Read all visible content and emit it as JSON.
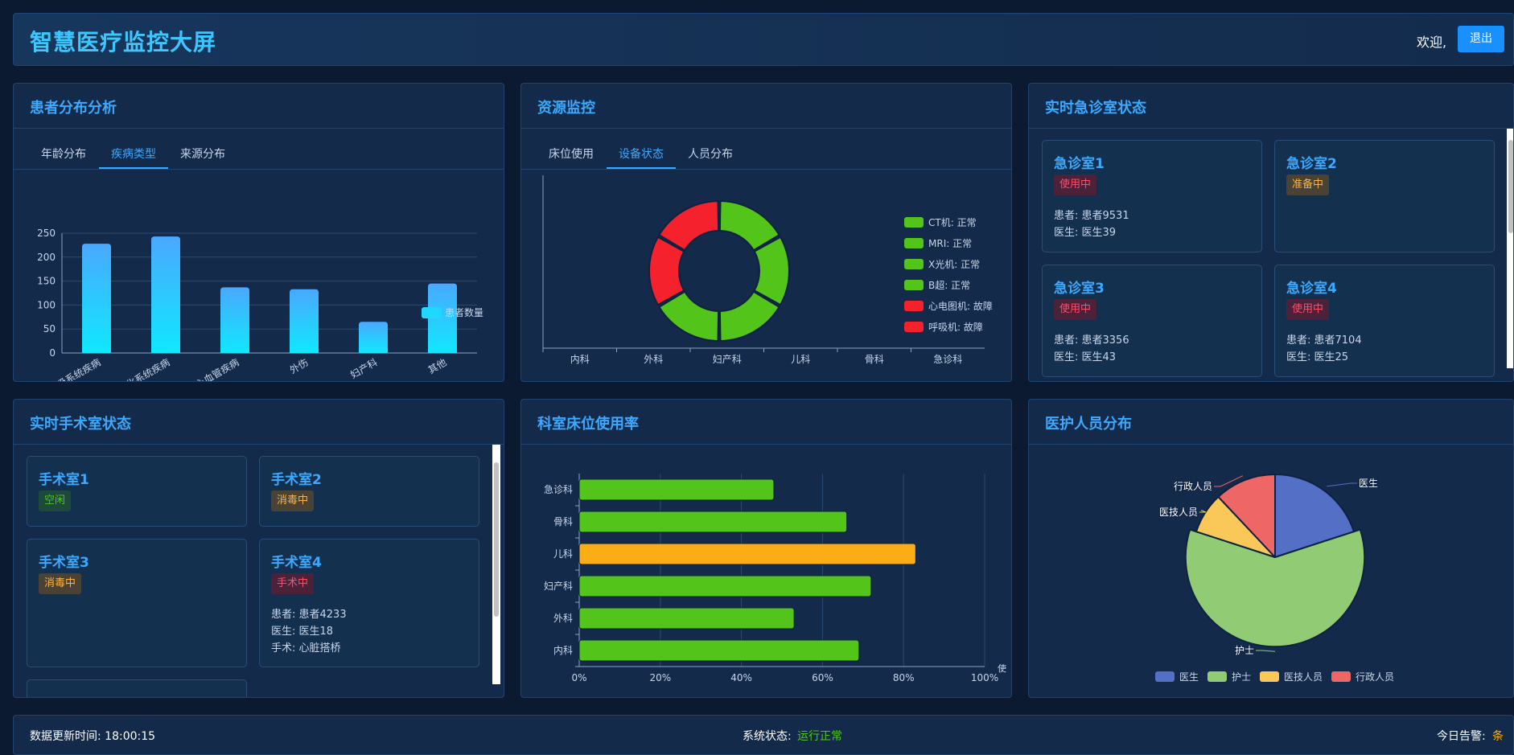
{
  "header": {
    "title": "智慧医疗监控大屏",
    "welcome": "欢迎,",
    "logout_label": "退出"
  },
  "patient_panel": {
    "title": "患者分布分析",
    "tabs": [
      "年龄分布",
      "疾病类型",
      "来源分布"
    ],
    "active_tab": 1
  },
  "resource_panel": {
    "title": "资源监控",
    "tabs": [
      "床位使用",
      "设备状态",
      "人员分布"
    ],
    "active_tab": 1
  },
  "er_panel": {
    "title": "实时急诊室状态",
    "rooms": [
      {
        "name": "急诊室1",
        "status": "使用中",
        "patient": "患者: 患者9531",
        "doctor": "医生: 医生39"
      },
      {
        "name": "急诊室2",
        "status": "准备中"
      },
      {
        "name": "急诊室3",
        "status": "使用中",
        "patient": "患者: 患者3356",
        "doctor": "医生: 医生43"
      },
      {
        "name": "急诊室4",
        "status": "使用中",
        "patient": "患者: 患者7104",
        "doctor": "医生: 医生25"
      }
    ]
  },
  "or_panel": {
    "title": "实时手术室状态",
    "rooms": [
      {
        "name": "手术室1",
        "status": "空闲"
      },
      {
        "name": "手术室2",
        "status": "消毒中"
      },
      {
        "name": "手术室3",
        "status": "消毒中"
      },
      {
        "name": "手术室4",
        "status": "手术中",
        "patient": "患者: 患者4233",
        "doctor": "医生: 医生18",
        "surgery": "手术: 心脏搭桥"
      }
    ]
  },
  "bed_panel": {
    "title": "科室床位使用率"
  },
  "staff_panel": {
    "title": "医护人员分布"
  },
  "footer": {
    "update_label": "数据更新时间: 18:00:15",
    "status_label": "系统状态:",
    "status_value": "运行正常",
    "alert_label": "今日告警:",
    "alert_value": "条"
  },
  "colors": {
    "accent": "#3ca9ff",
    "green": "#52c41a",
    "red": "#f5222d",
    "orange": "#faad14"
  },
  "chart_data": [
    {
      "type": "bar",
      "categories": [
        "呼吸系统疾病",
        "消化系统疾病",
        "心血管疾病",
        "外伤",
        "妇产科",
        "其他"
      ],
      "series": [
        {
          "name": "患者数量",
          "values": [
            228,
            243,
            137,
            133,
            65,
            145
          ]
        }
      ],
      "ylim": [
        0,
        250
      ],
      "yticks": [
        "0",
        "50",
        "100",
        "150",
        "200",
        "250"
      ],
      "legend": "right"
    },
    {
      "type": "pie",
      "variant": "donut",
      "x_categories": [
        "内科",
        "外科",
        "妇产科",
        "儿科",
        "骨科",
        "急诊科"
      ],
      "slices": [
        {
          "name": "CT机: 正常",
          "value": 1,
          "color": "#52c41a"
        },
        {
          "name": "MRI: 正常",
          "value": 1,
          "color": "#52c41a"
        },
        {
          "name": "X光机: 正常",
          "value": 1,
          "color": "#52c41a"
        },
        {
          "name": "B超: 正常",
          "value": 1,
          "color": "#52c41a"
        },
        {
          "name": "心电图机: 故障",
          "value": 1,
          "color": "#f5222d"
        },
        {
          "name": "呼吸机: 故障",
          "value": 1,
          "color": "#f5222d"
        }
      ],
      "legend": "right"
    },
    {
      "type": "bar",
      "orientation": "horizontal",
      "categories": [
        "内科",
        "外科",
        "妇产科",
        "儿科",
        "骨科",
        "急诊科"
      ],
      "values": [
        0.69,
        0.53,
        0.72,
        0.83,
        0.66,
        0.48
      ],
      "colors": [
        "#52c41a",
        "#52c41a",
        "#52c41a",
        "#faad14",
        "#52c41a",
        "#52c41a"
      ],
      "xticks": [
        "0%",
        "20%",
        "40%",
        "60%",
        "80%",
        "100%"
      ],
      "xlim": [
        0,
        1
      ],
      "xlabel": "使"
    },
    {
      "type": "pie",
      "slices": [
        {
          "name": "医生",
          "value": 20,
          "color": "#5470c6"
        },
        {
          "name": "护士",
          "value": 60,
          "color": "#91cc75"
        },
        {
          "name": "医技人员",
          "value": 8,
          "color": "#fac858"
        },
        {
          "name": "行政人员",
          "value": 12,
          "color": "#ee6666"
        }
      ],
      "legend": "bottom"
    }
  ]
}
